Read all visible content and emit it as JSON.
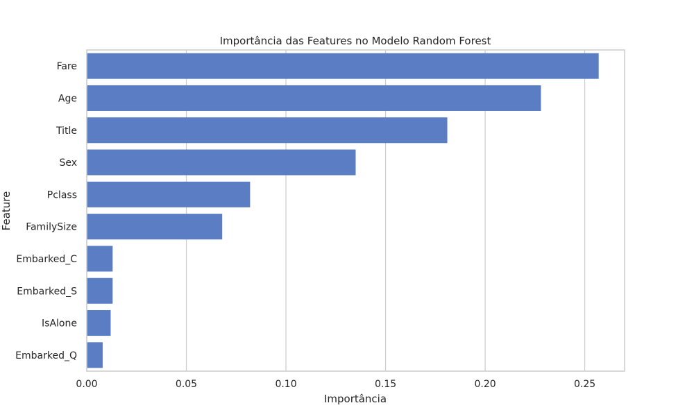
{
  "chart_data": {
    "type": "bar",
    "orientation": "horizontal",
    "title": "Importância das Features no Modelo Random Forest",
    "xlabel": "Importância",
    "ylabel": "Feature",
    "categories": [
      "Fare",
      "Age",
      "Title",
      "Sex",
      "Pclass",
      "FamilySize",
      "Embarked_C",
      "Embarked_S",
      "IsAlone",
      "Embarked_Q"
    ],
    "values": [
      0.257,
      0.228,
      0.181,
      0.135,
      0.082,
      0.068,
      0.013,
      0.013,
      0.012,
      0.008
    ],
    "xlim": [
      0,
      0.27
    ],
    "xticks": [
      0.0,
      0.05,
      0.1,
      0.15,
      0.2,
      0.25
    ],
    "xtick_labels": [
      "0.00",
      "0.05",
      "0.10",
      "0.15",
      "0.20",
      "0.25"
    ],
    "grid": "vertical",
    "bar_color": "#5a7dc4",
    "grid_color": "#cccccc",
    "frame_color": "#cccccc"
  }
}
